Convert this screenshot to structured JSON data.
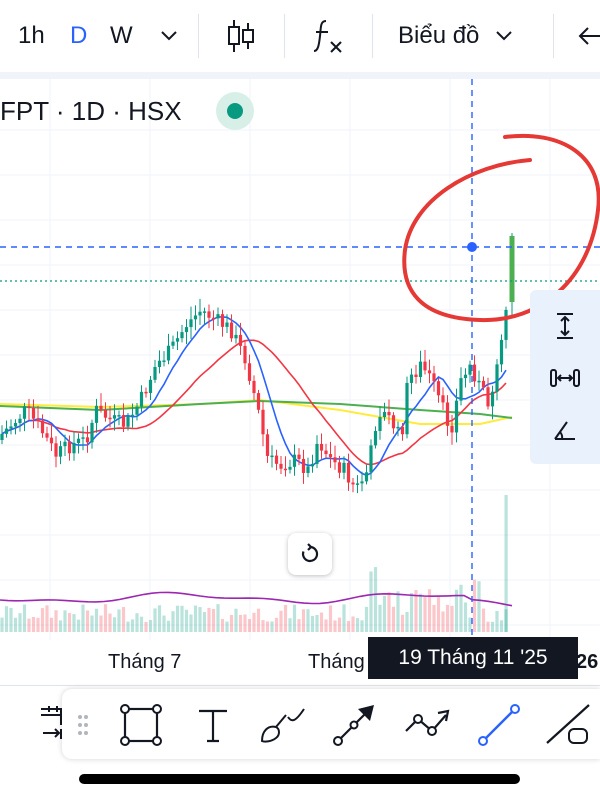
{
  "toolbar": {
    "interval_1h": "1h",
    "interval_d": "D",
    "interval_w": "W",
    "chart_type_menu": "Biểu đồ",
    "icons": [
      "chevron-down-icon",
      "candles-icon",
      "indicators-icon",
      "chevron-down-icon",
      "arrow-left-icon"
    ]
  },
  "symbol": {
    "title": "FPT · 1D · HSX"
  },
  "xaxis": {
    "label_jul": "Tháng 7",
    "label_partial": "Tháng",
    "label_right": "26",
    "crosshair_date": "19 Tháng 11 '25"
  },
  "colors": {
    "up": "#089981",
    "down": "#f23645",
    "ma_blue": "#2962ff",
    "ma_red": "#f23645",
    "ma_yellow": "#ffeb3b",
    "ma_green": "#4caf50",
    "volume_ma": "#9c27b0",
    "crosshair": "#2962ff",
    "annotation": "#e53935"
  },
  "side_tools": [
    "measure-vertical-icon",
    "measure-horizontal-icon",
    "angle-icon"
  ],
  "bottom_tools": [
    "date-range-icon",
    "drag-handle-icon",
    "rectangle-icon",
    "text-icon",
    "brush-icon",
    "arrow-icon",
    "path-icon",
    "trend-line-icon",
    "extended-line-icon"
  ]
}
